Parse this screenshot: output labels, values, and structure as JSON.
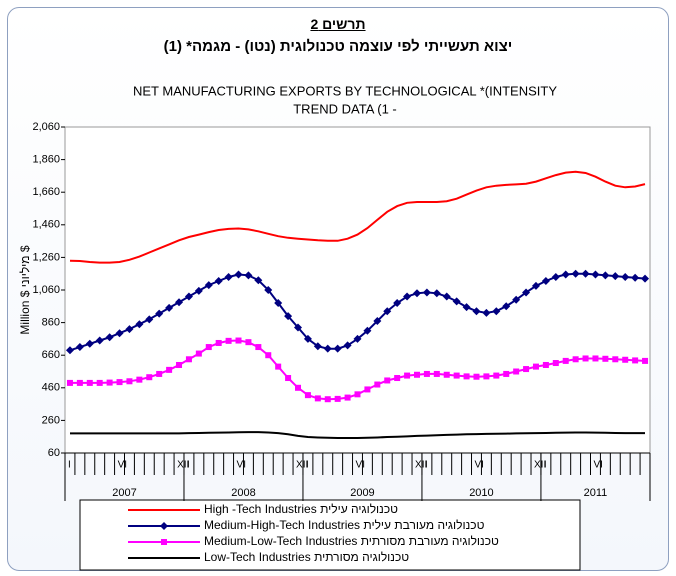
{
  "chart_data": {
    "type": "line",
    "chart_number": "תרשים 2",
    "hebrew_title": "יצוא תעשייתי לפי עוצמה טכנולוגית (נטו) - מגמה* (1)",
    "title": [
      "NET MANUFACTURING EXPORTS BY TECHNOLOGICAL *(INTENSITY",
      "TREND DATA (1 -"
    ],
    "y_label": "Million $ מיליוני $",
    "years": [
      "2007",
      "2008",
      "2009",
      "2010",
      "2011"
    ],
    "categories": [
      "I",
      null,
      null,
      null,
      null,
      "VI",
      null,
      null,
      null,
      null,
      null,
      "XII",
      "I",
      null,
      null,
      null,
      null,
      "VI",
      null,
      null,
      null,
      null,
      null,
      "XII",
      "I",
      null,
      null,
      null,
      null,
      "VI",
      null,
      null,
      null,
      null,
      null,
      "XII",
      "I",
      null,
      null,
      null,
      null,
      "VI",
      null,
      null,
      null,
      null,
      null,
      "XII",
      "I",
      null,
      null,
      null,
      null,
      "VI",
      null,
      null,
      null,
      null,
      null
    ],
    "ylim": [
      60,
      2060
    ],
    "yticks": [
      60,
      260,
      460,
      660,
      860,
      {
        "value": 1060,
        "label": "1,060"
      },
      {
        "value": 1260,
        "label": "1,260"
      },
      {
        "value": 1460,
        "label": "1,460"
      },
      {
        "value": 1660,
        "label": "1,660"
      },
      {
        "value": 1860,
        "label": "1,860"
      },
      {
        "value": 2060,
        "label": "2,060"
      }
    ],
    "series": [
      {
        "name": "High -Tech Industries  טכנולוגיה עילית",
        "color": "#ff0000",
        "marker": "none",
        "values": [
          1240,
          1238,
          1232,
          1228,
          1228,
          1232,
          1245,
          1265,
          1290,
          1315,
          1340,
          1365,
          1385,
          1400,
          1415,
          1428,
          1435,
          1437,
          1432,
          1420,
          1405,
          1390,
          1380,
          1375,
          1370,
          1365,
          1362,
          1362,
          1375,
          1400,
          1440,
          1490,
          1540,
          1575,
          1595,
          1600,
          1600,
          1600,
          1605,
          1620,
          1645,
          1670,
          1690,
          1700,
          1705,
          1708,
          1712,
          1725,
          1745,
          1765,
          1780,
          1785,
          1778,
          1755,
          1725,
          1700,
          1690,
          1695,
          1710
        ]
      },
      {
        "name": "Medium-High-Tech Industries  טכנולוגיה מעורבת עילית",
        "color": "#000080",
        "marker": "diamond",
        "values": [
          690,
          710,
          730,
          750,
          770,
          795,
          820,
          850,
          880,
          915,
          950,
          985,
          1020,
          1055,
          1090,
          1115,
          1140,
          1155,
          1150,
          1120,
          1060,
          980,
          900,
          830,
          760,
          715,
          700,
          700,
          720,
          760,
          810,
          870,
          930,
          980,
          1020,
          1040,
          1045,
          1040,
          1020,
          990,
          955,
          930,
          920,
          930,
          960,
          1000,
          1045,
          1085,
          1115,
          1140,
          1155,
          1160,
          1160,
          1155,
          1150,
          1145,
          1140,
          1135,
          1130
        ]
      },
      {
        "name": "Medium-Low-Tech Industries  טכנולוגיה מעורבת מסורתית",
        "color": "#ff00ff",
        "marker": "square",
        "values": [
          490,
          490,
          490,
          490,
          492,
          495,
          500,
          510,
          525,
          545,
          570,
          600,
          635,
          670,
          710,
          735,
          748,
          750,
          740,
          710,
          660,
          590,
          520,
          460,
          415,
          395,
          390,
          392,
          400,
          420,
          450,
          480,
          505,
          520,
          535,
          540,
          545,
          545,
          540,
          535,
          530,
          528,
          530,
          535,
          545,
          560,
          575,
          590,
          600,
          612,
          625,
          635,
          640,
          640,
          638,
          635,
          632,
          628,
          625
        ]
      },
      {
        "name": "Low-Tech Industries  טכנולוגיה מסורתית",
        "color": "#000000",
        "marker": "none",
        "values": [
          180,
          180,
          180,
          180,
          180,
          180,
          180,
          180,
          180,
          180,
          180,
          180,
          182,
          183,
          184,
          185,
          186,
          187,
          188,
          188,
          186,
          182,
          175,
          165,
          158,
          155,
          153,
          152,
          152,
          152,
          153,
          155,
          158,
          160,
          162,
          165,
          167,
          169,
          171,
          173,
          175,
          176,
          177,
          178,
          179,
          180,
          181,
          182,
          183,
          184,
          185,
          186,
          186,
          185,
          184,
          183,
          182,
          182,
          182
        ]
      }
    ]
  }
}
